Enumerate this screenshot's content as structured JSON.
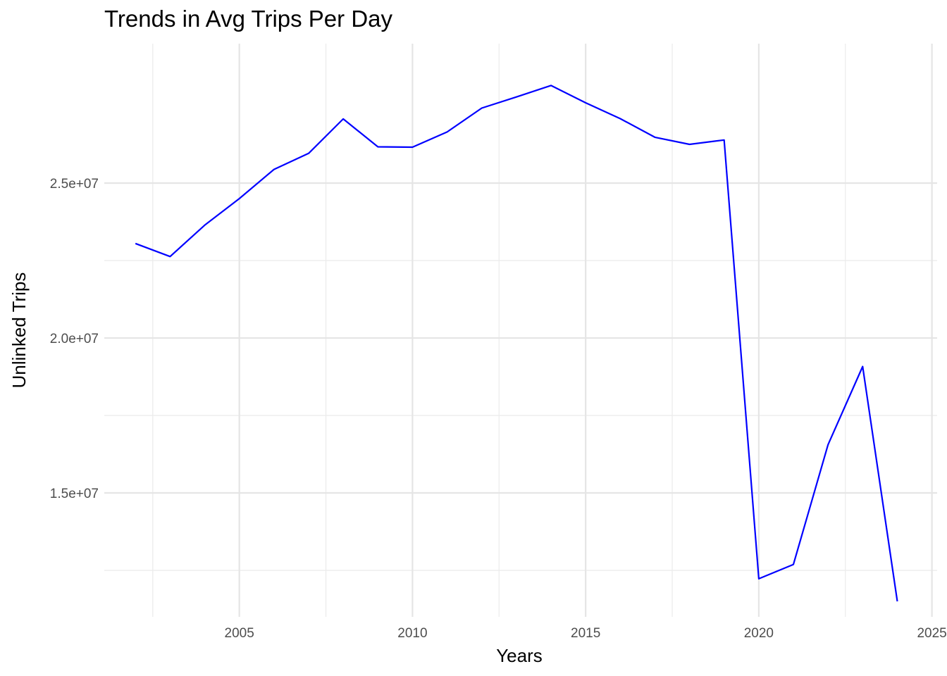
{
  "chart_data": {
    "type": "line",
    "title": "Trends in Avg Trips Per Day",
    "xlabel": "Years",
    "ylabel": "Unlinked Trips",
    "xlim": [
      2001.1,
      2025.15
    ],
    "ylim": [
      11000000,
      29500000
    ],
    "x_ticks": [
      2005,
      2010,
      2015,
      2020,
      2025
    ],
    "y_ticks": [
      15000000,
      20000000,
      25000000
    ],
    "y_tick_labels": [
      "1.5e+07",
      "2.0e+07",
      "2.5e+07"
    ],
    "grid": true,
    "line_color": "#0000ff",
    "series": [
      {
        "x": [
          2002,
          2003,
          2004,
          2005,
          2006,
          2007,
          2008,
          2009,
          2010,
          2011,
          2012,
          2013,
          2014,
          2015,
          2016,
          2017,
          2018,
          2019,
          2020,
          2021,
          2022,
          2023,
          2024
        ],
        "values": [
          23050000,
          22630000,
          23640000,
          24500000,
          25440000,
          25960000,
          27070000,
          26170000,
          26160000,
          26650000,
          27420000,
          27780000,
          28150000,
          27590000,
          27080000,
          26480000,
          26250000,
          26390000,
          12230000,
          12690000,
          16560000,
          19080000,
          11500000
        ]
      }
    ]
  }
}
